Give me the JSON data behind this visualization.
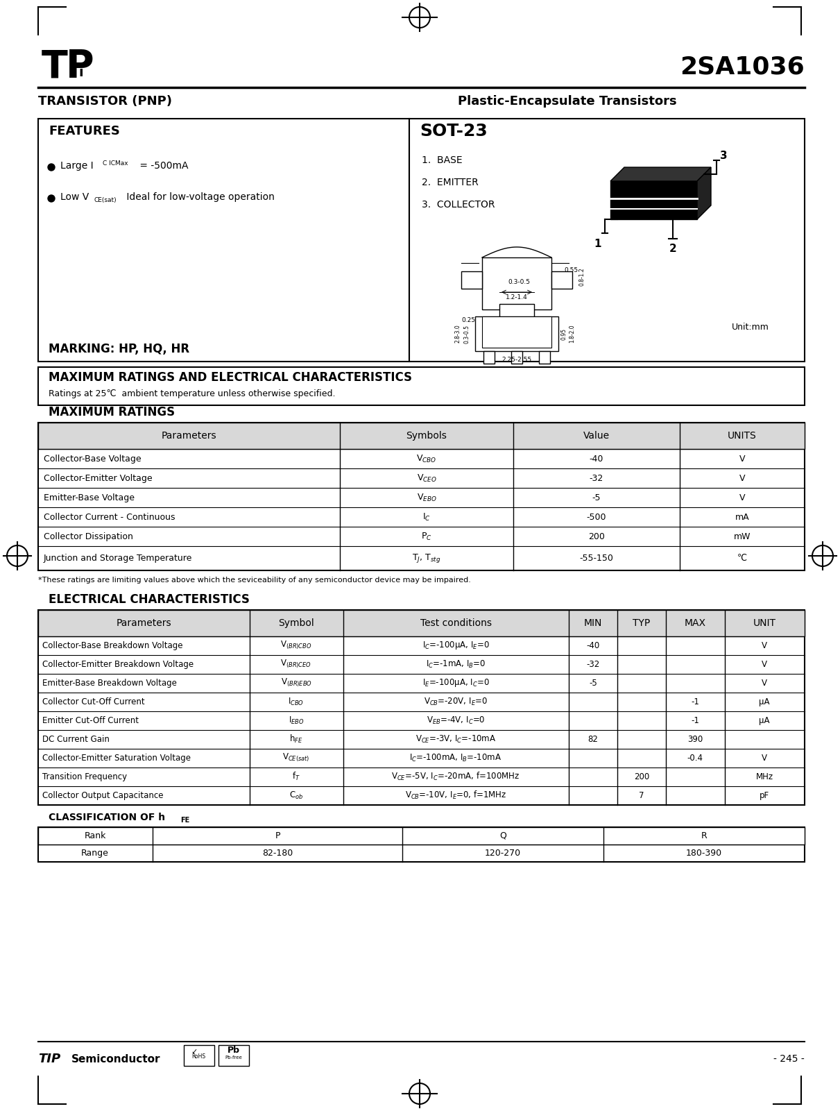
{
  "title": "2SA1036",
  "transistor_type": "TRANSISTOR (PNP)",
  "transistor_subtype": "Plastic-Encapsulate Transistors",
  "features_title": "FEATURES",
  "package": "SOT-23",
  "pins": [
    "1.  BASE",
    "2.  EMITTER",
    "3.  COLLECTOR"
  ],
  "marking_title": "MARKING: HP, HQ, HR",
  "max_ratings_title": "MAXIMUM RATINGS AND ELECTRICAL CHARACTERISTICS",
  "max_ratings_subtitle": "Ratings at 25℃  ambient temperature unless otherwise specified.",
  "max_ratings_section": "MAXIMUM RATINGS",
  "max_ratings_headers": [
    "Parameters",
    "Symbols",
    "Value",
    "UNITS"
  ],
  "max_ratings_rows": [
    [
      "Collector-Base Voltage",
      "V$_{CBO}$",
      "-40",
      "V"
    ],
    [
      "Collector-Emitter Voltage",
      "V$_{CEO}$",
      "-32",
      "V"
    ],
    [
      "Emitter-Base Voltage",
      "V$_{EBO}$",
      "-5",
      "V"
    ],
    [
      "Collector Current - Continuous",
      "I$_{C}$",
      "-500",
      "mA"
    ],
    [
      "Collector Dissipation",
      "P$_{C}$",
      "200",
      "mW"
    ],
    [
      "Junction and Storage Temperature",
      "T$_{J}$, T$_{stg}$",
      "-55-150",
      "℃"
    ]
  ],
  "footnote": "*These ratings are limiting values above which the seviceability of any semiconductor device may be impaired.",
  "elec_char_section": "ELECTRICAL CHARACTERISTICS",
  "elec_char_headers": [
    "Parameters",
    "Symbol",
    "Test conditions",
    "MIN",
    "TYP",
    "MAX",
    "UNIT"
  ],
  "elec_char_rows": [
    [
      "Collector-Base Breakdown Voltage",
      "V$_{(BR)CBO}$",
      "I$_{C}$=-100μA, I$_{E}$=0",
      "-40",
      "",
      "",
      "V"
    ],
    [
      "Collector-Emitter Breakdown Voltage",
      "V$_{(BR)CEO}$",
      "I$_{C}$=-1mA, I$_{B}$=0",
      "-32",
      "",
      "",
      "V"
    ],
    [
      "Emitter-Base Breakdown Voltage",
      "V$_{(BR)EBO}$",
      "I$_{E}$=-100μA, I$_{C}$=0",
      "-5",
      "",
      "",
      "V"
    ],
    [
      "Collector Cut-Off Current",
      "I$_{CBO}$",
      "V$_{CB}$=-20V, I$_{E}$=0",
      "",
      "",
      "-1",
      "μA"
    ],
    [
      "Emitter Cut-Off Current",
      "I$_{EBO}$",
      "V$_{EB}$=-4V, I$_{C}$=0",
      "",
      "",
      "-1",
      "μA"
    ],
    [
      "DC Current Gain",
      "h$_{FE}$",
      "V$_{CE}$=-3V, I$_{C}$=-10mA",
      "82",
      "",
      "390",
      ""
    ],
    [
      "Collector-Emitter Saturation Voltage",
      "V$_{CE(sat)}$",
      "I$_{C}$=-100mA, I$_{B}$=-10mA",
      "",
      "",
      "-0.4",
      "V"
    ],
    [
      "Transition Frequency",
      "f$_{T}$",
      "V$_{CE}$=-5V, I$_{C}$=-20mA, f=100MHz",
      "",
      "200",
      "",
      "MHz"
    ],
    [
      "Collector Output Capacitance",
      "C$_{ob}$",
      "V$_{CB}$=-10V, I$_{E}$=0, f=1MHz",
      "",
      "7",
      "",
      "pF"
    ]
  ],
  "hfe_headers": [
    "Rank",
    "P",
    "Q",
    "R"
  ],
  "hfe_rows": [
    [
      "Range",
      "82-180",
      "120-270",
      "180-390"
    ]
  ],
  "bg_color": "#ffffff"
}
